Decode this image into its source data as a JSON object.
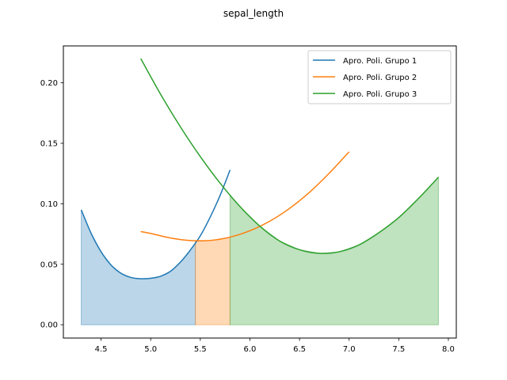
{
  "chart_data": {
    "type": "line",
    "title": "sepal_length",
    "xlabel": "",
    "ylabel": "",
    "xlim": [
      4.12,
      8.08
    ],
    "ylim": [
      -0.011,
      0.2305
    ],
    "xticks": [
      4.5,
      5.0,
      5.5,
      6.0,
      6.5,
      7.0,
      7.5,
      8.0
    ],
    "xtick_labels": [
      "4.5",
      "5.0",
      "5.5",
      "6.0",
      "6.5",
      "7.0",
      "7.5",
      "8.0"
    ],
    "yticks": [
      0.0,
      0.05,
      0.1,
      0.15,
      0.2
    ],
    "ytick_labels": [
      "0.00",
      "0.05",
      "0.10",
      "0.15",
      "0.20"
    ],
    "grid": false,
    "legend_position": "top-right",
    "series": [
      {
        "name": "Apro. Poli. Grupo 1",
        "color": "#1f77b4",
        "x": [
          4.3,
          4.4,
          4.5,
          4.6,
          4.7,
          4.8,
          4.9,
          5.0,
          5.1,
          5.2,
          5.3,
          5.4,
          5.5,
          5.6,
          5.7,
          5.8
        ],
        "y": [
          0.095,
          0.0755,
          0.0603,
          0.0494,
          0.0426,
          0.0391,
          0.038,
          0.0384,
          0.0401,
          0.0442,
          0.0518,
          0.0618,
          0.0735,
          0.089,
          0.107,
          0.128
        ],
        "fill": {
          "from": 4.3,
          "to": 5.45
        }
      },
      {
        "name": "Apro. Poli. Grupo 2",
        "color": "#ff7f0e",
        "x": [
          4.9,
          5.0,
          5.2,
          5.4,
          5.6,
          5.8,
          6.0,
          6.2,
          6.4,
          6.6,
          6.8,
          7.0
        ],
        "y": [
          0.077,
          0.0755,
          0.0717,
          0.0696,
          0.0697,
          0.0724,
          0.0777,
          0.0856,
          0.0962,
          0.1095,
          0.1253,
          0.143
        ],
        "fill": {
          "from": 5.45,
          "to": 5.8
        }
      },
      {
        "name": "Apro. Poli. Grupo 3",
        "color": "#2ca02c",
        "x": [
          4.9,
          5.1,
          5.3,
          5.5,
          5.7,
          5.9,
          6.1,
          6.3,
          6.5,
          6.7,
          6.9,
          7.1,
          7.3,
          7.5,
          7.7,
          7.9
        ],
        "y": [
          0.22,
          0.1905,
          0.1635,
          0.139,
          0.117,
          0.0977,
          0.0815,
          0.0692,
          0.062,
          0.059,
          0.0603,
          0.066,
          0.0761,
          0.0886,
          0.1045,
          0.122
        ],
        "fill": {
          "from": 5.8,
          "to": 7.9
        }
      }
    ]
  }
}
